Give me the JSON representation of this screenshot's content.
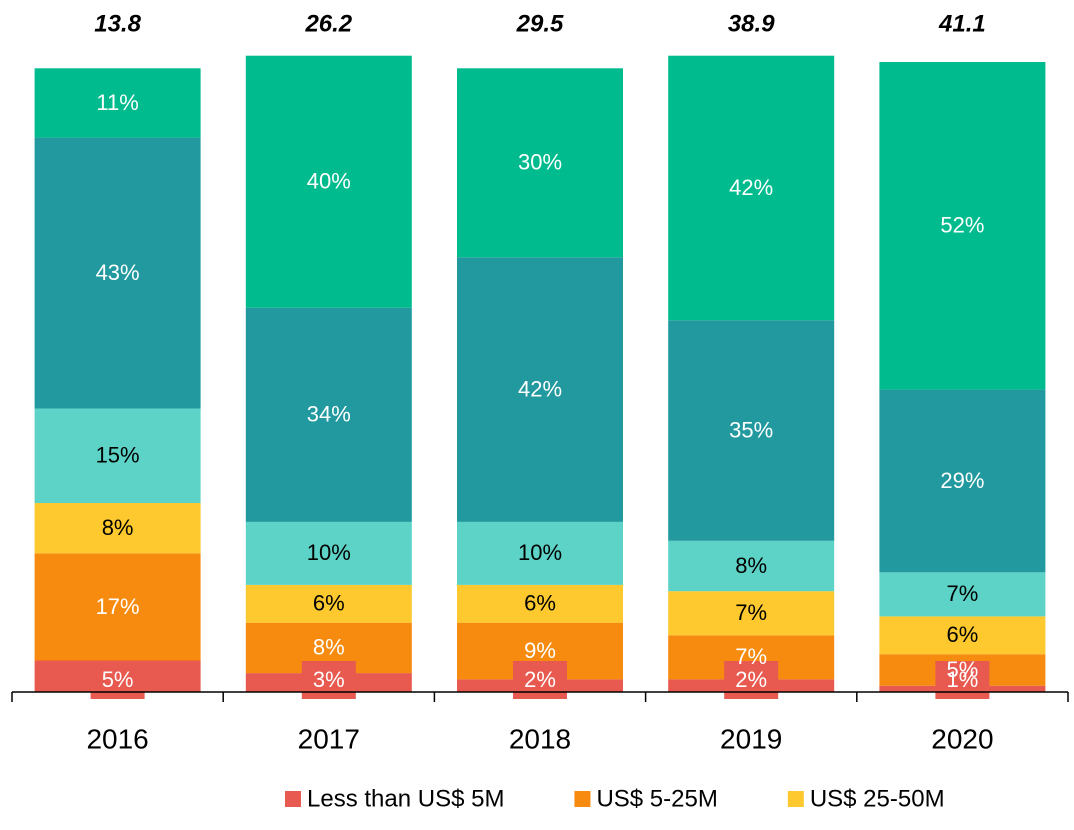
{
  "chart_data": {
    "type": "stacked_bar_100",
    "categories": [
      "2016",
      "2017",
      "2018",
      "2019",
      "2020"
    ],
    "totals": [
      13.8,
      26.2,
      29.5,
      38.9,
      41.1
    ],
    "ylim": [
      0,
      100
    ],
    "series": [
      {
        "name": "Less than US$ 5M",
        "color": "#e8594f",
        "label_color": "#ffffff",
        "values": [
          5,
          3,
          2,
          2,
          1
        ],
        "value_labels": [
          "5%",
          "3%",
          "2%",
          "2%",
          "1%"
        ]
      },
      {
        "name": "US$ 5-25M",
        "color": "#f68b0f",
        "label_color": "#ffffff",
        "values": [
          17,
          8,
          9,
          7,
          5
        ],
        "value_labels": [
          "17%",
          "8%",
          "9%",
          "7%",
          "5%"
        ]
      },
      {
        "name": "US$ 25-50M",
        "color": "#fdc92e",
        "label_color": "#000000",
        "values": [
          8,
          6,
          6,
          7,
          6
        ],
        "value_labels": [
          "8%",
          "6%",
          "6%",
          "7%",
          "6%"
        ]
      },
      {
        "color": "#5cd3c6",
        "label_color": "#000000",
        "values": [
          15,
          10,
          10,
          8,
          7
        ],
        "value_labels": [
          "15%",
          "10%",
          "10%",
          "8%",
          "7%"
        ]
      },
      {
        "color": "#21999f",
        "label_color": "#ffffff",
        "values": [
          43,
          34,
          42,
          35,
          29
        ],
        "value_labels": [
          "43%",
          "34%",
          "42%",
          "35%",
          "29%"
        ]
      },
      {
        "color": "#00bb8d",
        "label_color": "#ffffff",
        "values": [
          11,
          40,
          30,
          42,
          52
        ],
        "value_labels": [
          "11%",
          "40%",
          "30%",
          "42%",
          "52%"
        ]
      }
    ]
  }
}
